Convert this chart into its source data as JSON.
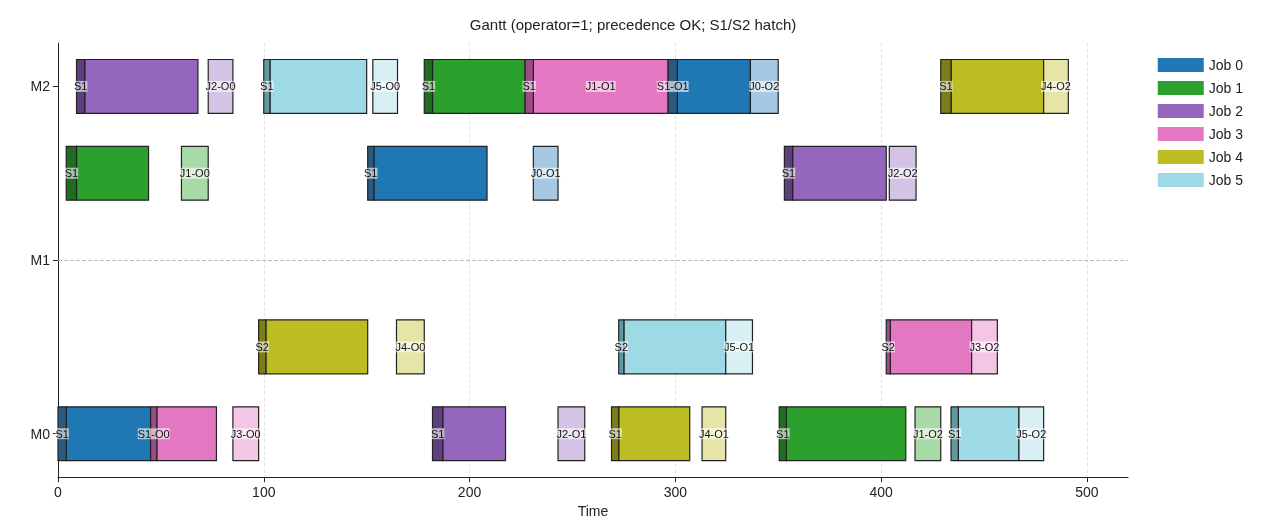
{
  "chart_data": {
    "type": "bar",
    "orientation": "horizontal",
    "title": "Gantt (operator=1; precedence OK; S1/S2 hatch)",
    "xlabel": "Time",
    "categories": [
      "M2",
      null,
      "M1",
      null,
      "M0"
    ],
    "xlim": [
      0,
      520
    ],
    "xticks": [
      0,
      100,
      200,
      300,
      400,
      500
    ],
    "grid": "x",
    "legend": "top right",
    "ref_lines": [
      {
        "axis": "y",
        "value": "M1",
        "line_style": "dashed",
        "color": "#bbbbbb"
      }
    ],
    "series": [
      {
        "name": "Job 0",
        "color": "#1f77b4",
        "values": [
          35.5,
          55,
          null,
          null,
          41
        ],
        "base": [
          301,
          153.5,
          null,
          null,
          4
        ],
        "value_labels": [
          null,
          null,
          null,
          null,
          null
        ]
      },
      {
        "name": "Job 1",
        "color": "#2ca02c",
        "values": [
          45,
          35,
          null,
          null,
          58
        ],
        "base": [
          182,
          9,
          null,
          null,
          354
        ],
        "value_labels": [
          null,
          null,
          null,
          null,
          null
        ]
      },
      {
        "name": "Job 2",
        "color": "#9467bd",
        "values": [
          55,
          45.5,
          null,
          null,
          30.5
        ],
        "base": [
          13,
          357,
          null,
          null,
          187
        ],
        "value_labels": [
          null,
          null,
          null,
          null,
          null
        ]
      },
      {
        "name": "Job 3",
        "color": "#e377c2",
        "values": [
          65.5,
          null,
          null,
          39.5,
          29
        ],
        "base": [
          231,
          null,
          null,
          404.5,
          48
        ],
        "value_labels": [
          "J1-O1",
          null,
          null,
          null,
          null
        ]
      },
      {
        "name": "Job 4",
        "color": "#bcbd22",
        "values": [
          45,
          null,
          null,
          49.5,
          34.5
        ],
        "base": [
          434,
          null,
          null,
          101,
          272.5
        ],
        "value_labels": [
          null,
          null,
          null,
          null,
          null
        ]
      },
      {
        "name": "Job 5",
        "color": "#9edae5",
        "values": [
          47,
          null,
          null,
          49.5,
          29.5
        ],
        "base": [
          103,
          null,
          null,
          275,
          437.5
        ],
        "value_labels": [
          null,
          null,
          null,
          null,
          null
        ]
      },
      {
        "color": "#2a5a80",
        "values": [
          4.5,
          3,
          null,
          null,
          4
        ],
        "base": [
          296.5,
          150.5,
          null,
          null,
          0
        ],
        "value_labels": [
          "S1-O1",
          "S1",
          null,
          null,
          "S1"
        ]
      },
      {
        "color": "#1f6e1f",
        "values": [
          4,
          5,
          null,
          null,
          3.5
        ],
        "base": [
          178,
          4,
          null,
          null,
          350.5
        ],
        "value_labels": [
          "S1",
          "S1",
          null,
          null,
          "S1"
        ]
      },
      {
        "color": "#5e3f80",
        "values": [
          4,
          4,
          null,
          null,
          5
        ],
        "base": [
          9,
          353,
          null,
          null,
          182
        ],
        "value_labels": [
          "S1",
          "S1",
          null,
          null,
          "S1"
        ]
      },
      {
        "color": "#9c4d87",
        "values": [
          4,
          null,
          null,
          2,
          3
        ],
        "base": [
          227,
          null,
          null,
          402.5,
          45
        ],
        "value_labels": [
          "S1",
          null,
          null,
          "S2",
          "S1-O0"
        ]
      },
      {
        "color": "#7d7e16",
        "values": [
          5,
          null,
          null,
          3.5,
          3.5
        ],
        "base": [
          429,
          null,
          null,
          97.5,
          269
        ],
        "value_labels": [
          "S1",
          null,
          null,
          "S2",
          "S1"
        ]
      },
      {
        "color": "#5f9aa3",
        "values": [
          3,
          null,
          null,
          2.5,
          3.5
        ],
        "base": [
          100,
          null,
          null,
          272.5,
          434
        ],
        "value_labels": [
          "S1",
          null,
          null,
          "S2",
          "S1"
        ]
      },
      {
        "color": "#a6c8e2",
        "values": [
          13.5,
          12,
          null,
          null,
          null
        ],
        "base": [
          336.5,
          231,
          null,
          null,
          null
        ],
        "value_labels": [
          "J0-O2",
          "J0-O1",
          null,
          null,
          null
        ]
      },
      {
        "color": "#a8daa8",
        "values": [
          null,
          13,
          null,
          null,
          12.5
        ],
        "base": [
          null,
          60,
          null,
          null,
          416.5
        ],
        "value_labels": [
          null,
          "J1-O0",
          null,
          null,
          "J1-O2"
        ]
      },
      {
        "color": "#d3c3e5",
        "values": [
          12,
          13,
          null,
          null,
          13
        ],
        "base": [
          73,
          404,
          null,
          null,
          243
        ],
        "value_labels": [
          "J2-O0",
          "J2-O2",
          null,
          null,
          "J2-O1"
        ]
      },
      {
        "color": "#f3c6e6",
        "values": [
          null,
          null,
          null,
          12.5,
          12.5
        ],
        "base": [
          null,
          null,
          null,
          444,
          85
        ],
        "value_labels": [
          null,
          null,
          null,
          "J3-O2",
          "J3-O0"
        ]
      },
      {
        "color": "#e4e5a6",
        "values": [
          12,
          null,
          null,
          13.5,
          11.5
        ],
        "base": [
          479,
          null,
          null,
          164.5,
          313
        ],
        "value_labels": [
          "J4-O2",
          null,
          null,
          "J4-O0",
          "J4-O1"
        ]
      },
      {
        "color": "#d8eff4",
        "values": [
          12,
          null,
          null,
          13,
          12
        ],
        "base": [
          153,
          null,
          null,
          324.5,
          467
        ],
        "value_labels": [
          "J5-O0",
          null,
          null,
          "J5-O1",
          "J5-O2"
        ]
      }
    ]
  }
}
